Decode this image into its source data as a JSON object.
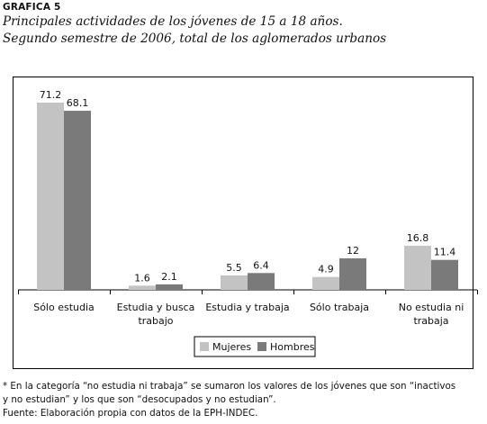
{
  "header": {
    "figure_label": "GRAFICA 5",
    "title_line1": "Principales actividades de los jóvenes de 15 a 18 años.",
    "title_line2": "Segundo semestre de 2006, total de los aglomerados urbanos"
  },
  "chart_data": {
    "type": "bar",
    "categories": [
      [
        "Sólo estudia"
      ],
      [
        "Estudia y busca",
        "trabajo"
      ],
      [
        "Estudia y trabaja"
      ],
      [
        "Sólo trabaja"
      ],
      [
        "No estudia ni",
        "trabaja"
      ]
    ],
    "series": [
      {
        "name": "Mujeres",
        "values": [
          71.2,
          1.6,
          5.5,
          4.9,
          16.8
        ],
        "color": "#c3c3c3"
      },
      {
        "name": "Hombres",
        "values": [
          68.1,
          2.1,
          6.4,
          12,
          11.4
        ],
        "color": "#7a7a7a"
      }
    ],
    "value_labels": [
      [
        "71.2",
        "1.6",
        "5.5",
        "4.9",
        "16.8"
      ],
      [
        "68.1",
        "2.1",
        "6.4",
        "12",
        "11.4"
      ]
    ],
    "ylim": [
      0,
      74
    ],
    "grid": false,
    "legend_position": "bottom-center"
  },
  "footnote": {
    "line1": "* En la categoría “no estudia ni trabaja” se sumaron los valores de los jóvenes que son “inactivos",
    "line2": "y no estudian” y los que son “desocupados y no estudian”.",
    "line3": "Fuente: Elaboración propia con datos de la EPH-INDEC."
  }
}
